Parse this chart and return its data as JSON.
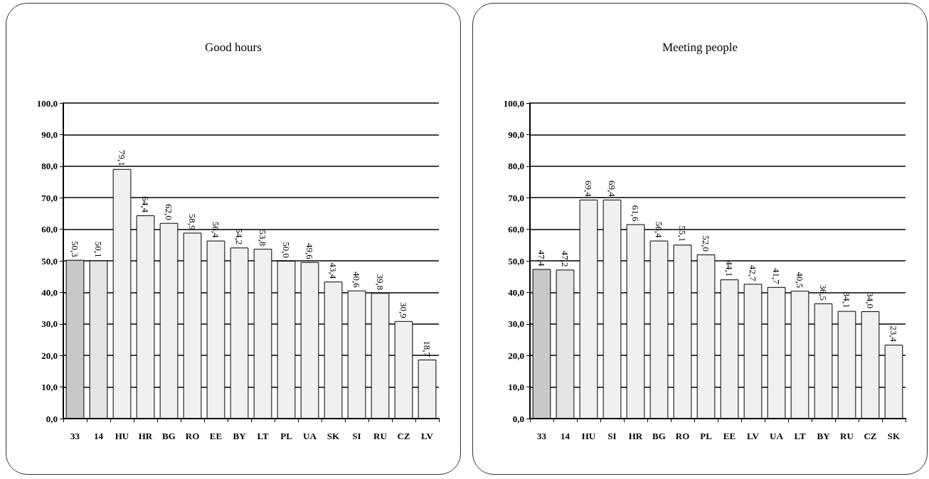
{
  "chart_data": [
    {
      "type": "bar",
      "title": "Good hours",
      "categories": [
        "33",
        "14",
        "HU",
        "HR",
        "BG",
        "RO",
        "EE",
        "BY",
        "LT",
        "PL",
        "UA",
        "SK",
        "SI",
        "RU",
        "CZ",
        "LV"
      ],
      "values": [
        50.3,
        50.1,
        79.1,
        64.4,
        62.0,
        58.9,
        56.4,
        54.2,
        53.8,
        50.0,
        49.6,
        43.4,
        40.6,
        39.8,
        30.9,
        18.7
      ],
      "value_labels": [
        "50,3",
        "50,1",
        "79,1",
        "64,4",
        "62,0",
        "58,9",
        "56,4",
        "54,2",
        "53,8",
        "50,0",
        "49,6",
        "43,4",
        "40,6",
        "39,8",
        "30,9",
        "18,7"
      ],
      "colors": [
        "#c8c8c8",
        "#e4e4e4",
        "#f0f0f0",
        "#f0f0f0",
        "#f0f0f0",
        "#f0f0f0",
        "#f0f0f0",
        "#f0f0f0",
        "#f0f0f0",
        "#f0f0f0",
        "#f0f0f0",
        "#f0f0f0",
        "#f0f0f0",
        "#f0f0f0",
        "#f0f0f0",
        "#f0f0f0"
      ],
      "ylim": [
        0,
        100
      ],
      "yticks": [
        {
          "value": 0,
          "label": "0,0"
        },
        {
          "value": 10,
          "label": "10,0"
        },
        {
          "value": 20,
          "label": "20,0"
        },
        {
          "value": 30,
          "label": "30,0"
        },
        {
          "value": 40,
          "label": "40,0"
        },
        {
          "value": 50,
          "label": "50,0"
        },
        {
          "value": 60,
          "label": "60,0"
        },
        {
          "value": 70,
          "label": "70,0"
        },
        {
          "value": 80,
          "label": "80,0"
        },
        {
          "value": 90,
          "label": "90,0"
        },
        {
          "value": 100,
          "label": "100,0"
        }
      ],
      "grid": "y"
    },
    {
      "type": "bar",
      "title": "Meeting people",
      "categories": [
        "33",
        "14",
        "HU",
        "SI",
        "HR",
        "BG",
        "RO",
        "PL",
        "EE",
        "LV",
        "UA",
        "LT",
        "BY",
        "RU",
        "CZ",
        "SK"
      ],
      "values": [
        47.4,
        47.2,
        69.4,
        69.4,
        61.6,
        56.4,
        55.1,
        52.0,
        44.1,
        42.7,
        41.7,
        40.5,
        36.5,
        34.1,
        34.0,
        23.4
      ],
      "value_labels": [
        "47,4",
        "47,2",
        "69,4",
        "69,4",
        "61,6",
        "56,4",
        "55,1",
        "52,0",
        "44,1",
        "42,7",
        "41,7",
        "40,5",
        "36,5",
        "34,1",
        "34,0",
        "23,4"
      ],
      "colors": [
        "#c8c8c8",
        "#e4e4e4",
        "#f0f0f0",
        "#f0f0f0",
        "#f0f0f0",
        "#f0f0f0",
        "#f0f0f0",
        "#f0f0f0",
        "#f0f0f0",
        "#f0f0f0",
        "#f0f0f0",
        "#f0f0f0",
        "#f0f0f0",
        "#f0f0f0",
        "#f0f0f0",
        "#f0f0f0"
      ],
      "ylim": [
        0,
        100
      ],
      "yticks": [
        {
          "value": 0,
          "label": "0,0"
        },
        {
          "value": 10,
          "label": "10,0"
        },
        {
          "value": 20,
          "label": "20,0"
        },
        {
          "value": 30,
          "label": "30,0"
        },
        {
          "value": 40,
          "label": "40,0"
        },
        {
          "value": 50,
          "label": "50,0"
        },
        {
          "value": 60,
          "label": "60,0"
        },
        {
          "value": 70,
          "label": "70,0"
        },
        {
          "value": 80,
          "label": "80,0"
        },
        {
          "value": 90,
          "label": "90,0"
        },
        {
          "value": 100,
          "label": "100,0"
        }
      ],
      "grid": "y"
    }
  ]
}
